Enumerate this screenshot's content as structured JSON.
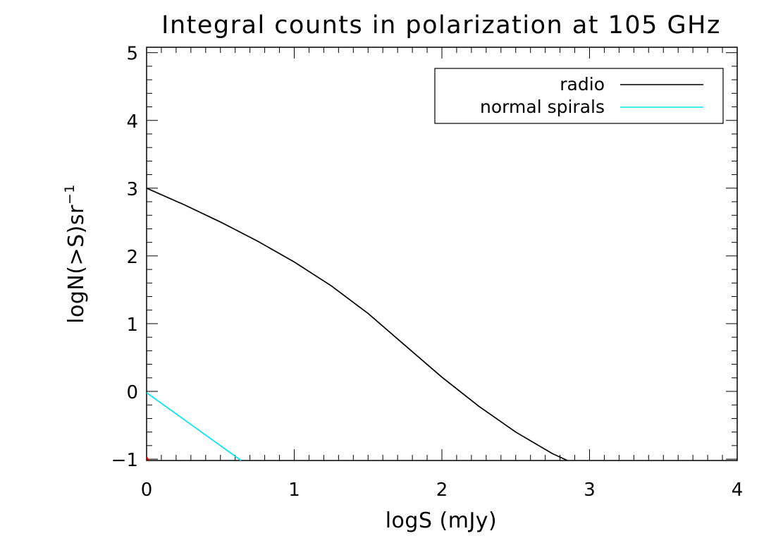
{
  "chart_data": {
    "type": "line",
    "title": "Integral counts in polarization at 105 GHz",
    "xlabel": "logS (mJy)",
    "ylabel": {
      "base": "logN(>S)sr",
      "superscript": "−1"
    },
    "xlim": [
      0,
      4
    ],
    "ylim": [
      -1.02,
      5.08
    ],
    "x_ticks": [
      0,
      1,
      2,
      3,
      4
    ],
    "x_tick_labels": [
      "0",
      "1",
      "2",
      "3",
      "4"
    ],
    "y_ticks": [
      -1,
      0,
      1,
      2,
      3,
      4,
      5
    ],
    "y_tick_labels": [
      "−1",
      "0",
      "1",
      "2",
      "3",
      "4",
      "5"
    ],
    "x_minor_step": 0.1,
    "y_minor_step": 0.2,
    "grid": false,
    "legend_position": "top-right",
    "series": [
      {
        "name": "radio",
        "color": "#000000",
        "points": [
          [
            0,
            3.0
          ],
          [
            0.25,
            2.76
          ],
          [
            0.5,
            2.5
          ],
          [
            0.75,
            2.22
          ],
          [
            1.0,
            1.91
          ],
          [
            1.25,
            1.56
          ],
          [
            1.5,
            1.15
          ],
          [
            1.75,
            0.68
          ],
          [
            2.0,
            0.21
          ],
          [
            2.25,
            -0.22
          ],
          [
            2.5,
            -0.6
          ],
          [
            2.75,
            -0.92
          ],
          [
            2.85,
            -1.02
          ]
        ]
      },
      {
        "name": "normal spirals",
        "color": "#00e5ee",
        "points": [
          [
            0,
            -0.02
          ],
          [
            0.64,
            -1.02
          ]
        ]
      },
      {
        "name": "",
        "color": "#cc0000",
        "points": [
          [
            0,
            -0.97
          ],
          [
            0.01,
            -1.02
          ]
        ]
      }
    ]
  }
}
